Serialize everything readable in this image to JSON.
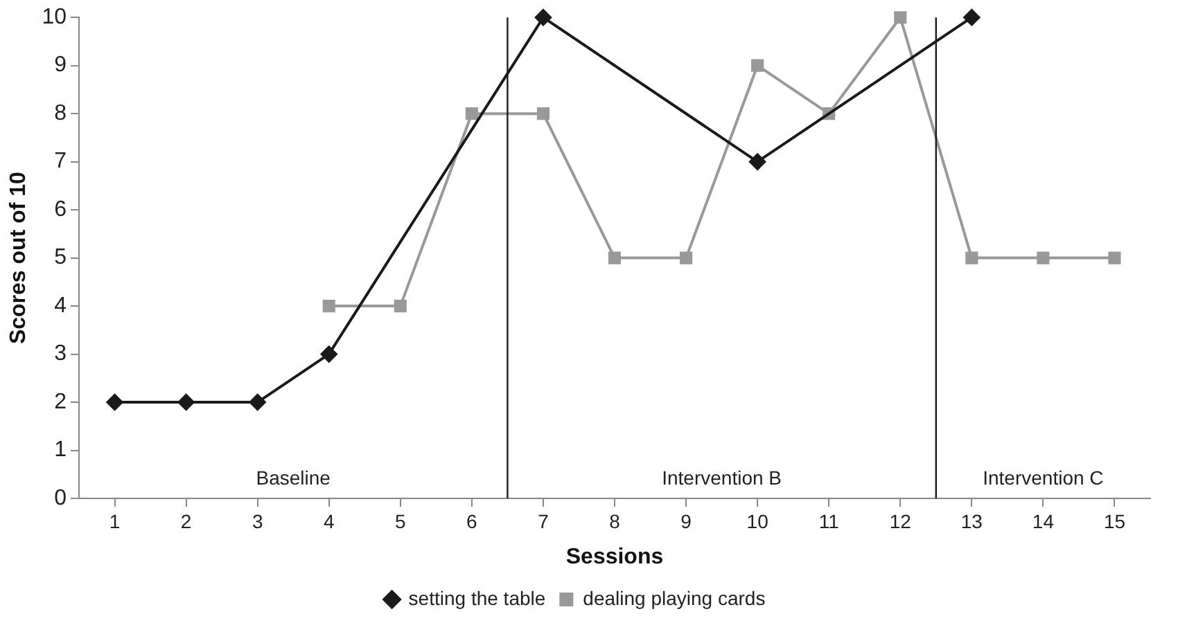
{
  "chart_data": {
    "type": "line",
    "xlabel": "Sessions",
    "ylabel": "Scores out of 10",
    "x": [
      1,
      2,
      3,
      4,
      5,
      6,
      7,
      8,
      9,
      10,
      11,
      12,
      13,
      14,
      15
    ],
    "xlim": [
      0.5,
      15.5
    ],
    "xticks": [
      1,
      2,
      3,
      4,
      5,
      6,
      7,
      8,
      9,
      10,
      11,
      12,
      13,
      14,
      15
    ],
    "ylim": [
      0,
      10
    ],
    "yticks": [
      0,
      1,
      2,
      3,
      4,
      5,
      6,
      7,
      8,
      9,
      10
    ],
    "grid": false,
    "legend": "bottom",
    "line_style": "solid",
    "series": [
      {
        "name": "setting the table",
        "color": "#1a1a1a",
        "marker": "diamond",
        "values": [
          2,
          2,
          2,
          3,
          null,
          null,
          10,
          null,
          null,
          7,
          null,
          null,
          10,
          null,
          null
        ]
      },
      {
        "name": "dealing playing cards",
        "color": "#999999",
        "marker": "square",
        "values": [
          null,
          null,
          null,
          4,
          4,
          8,
          8,
          5,
          5,
          9,
          8,
          10,
          5,
          5,
          5
        ]
      }
    ],
    "ref_lines": [
      {
        "axis": "x",
        "value": 6.5,
        "color": "#1a1a1a"
      },
      {
        "axis": "x",
        "value": 12.5,
        "color": "#1a1a1a"
      }
    ],
    "annotations": [
      "Baseline",
      "Intervention B",
      "Intervention C"
    ]
  }
}
